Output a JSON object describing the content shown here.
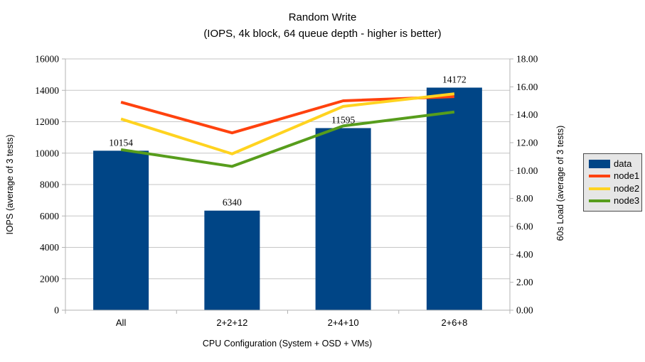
{
  "title": {
    "line1": "Random Write",
    "line2": "(IOPS, 4k block, 64 queue depth - higher is better)"
  },
  "chart_data": {
    "type": "combo-bar-line",
    "categories": [
      "All",
      "2+2+12",
      "2+4+10",
      "2+6+8"
    ],
    "series": [
      {
        "name": "data",
        "kind": "bar",
        "axis": "left",
        "color": "#004586",
        "values": [
          10154,
          6340,
          11595,
          14172
        ]
      },
      {
        "name": "node1",
        "kind": "line",
        "axis": "right",
        "color": "#ff420e",
        "values": [
          14.9,
          12.7,
          15.0,
          15.3
        ]
      },
      {
        "name": "node2",
        "kind": "line",
        "axis": "right",
        "color": "#ffd320",
        "values": [
          13.7,
          11.2,
          14.6,
          15.5
        ]
      },
      {
        "name": "node3",
        "kind": "line",
        "axis": "right",
        "color": "#579d1c",
        "values": [
          11.5,
          10.3,
          13.2,
          14.2
        ]
      }
    ],
    "bar_labels": [
      "10154",
      "6340",
      "11595",
      "14172"
    ],
    "xlabel": "CPU Configuration (System + OSD + VMs)",
    "ylabel_left": "IOPS (average of 3 tests)",
    "ylabel_right": "60s Load (average of 3 tests)",
    "y_left": {
      "min": 0,
      "max": 16000,
      "step": 2000
    },
    "y_right": {
      "min": 0,
      "max": 18,
      "step": 2,
      "decimals": 2
    },
    "grid": true,
    "legend_position": "right",
    "legend_items": [
      "data",
      "node1",
      "node2",
      "node3"
    ]
  },
  "colors": {
    "background": "#ffffff",
    "gridline": "#c6c6c6",
    "axis_line": "#b3b3b3",
    "text": "#000000",
    "legend_bg": "#e6e6e6",
    "legend_border": "#4a4a4a"
  }
}
